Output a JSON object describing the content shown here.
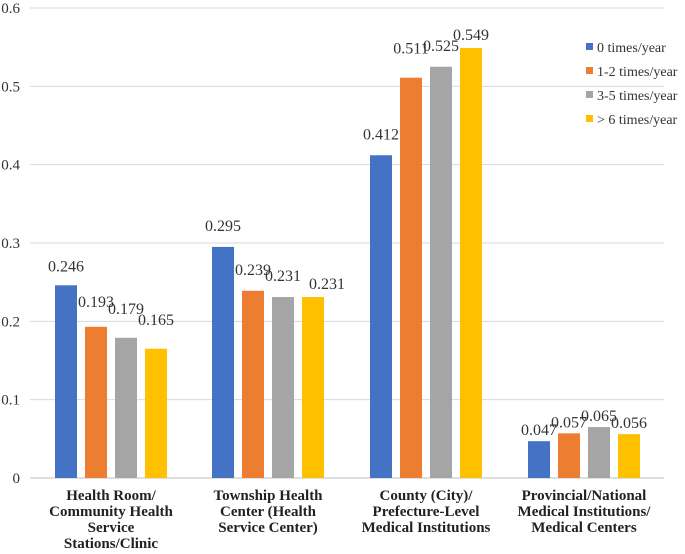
{
  "chart_data": {
    "type": "bar",
    "title": "",
    "xlabel": "",
    "ylabel": "",
    "ylim": [
      0,
      0.6
    ],
    "yticks": [
      0,
      0.1,
      0.2,
      0.3,
      0.4,
      0.5,
      0.6
    ],
    "ytick_labels": [
      "0",
      "0.1",
      "0.2",
      "0.3",
      "0.4",
      "0.5",
      "0.6"
    ],
    "grid": true,
    "legend_position": "right",
    "categories": [
      [
        "Health  Room/",
        "Community Health",
        "Service",
        "Stations/Clinic"
      ],
      [
        "Township Health",
        "Center (Health",
        "Service Center)"
      ],
      [
        "County (City)/",
        "Prefecture-Level",
        "Medical Institutions"
      ],
      [
        "Provincial/National",
        "Medical Institutions/",
        "Medical Centers"
      ]
    ],
    "series": [
      {
        "name": "0 times/year",
        "color": "#4472C4",
        "values": [
          0.246,
          0.295,
          0.412,
          0.047
        ],
        "labels": [
          "0.246",
          "0.295",
          "0.412",
          "0.047"
        ]
      },
      {
        "name": "1-2 times/year",
        "color": "#ED7D31",
        "values": [
          0.193,
          0.239,
          0.511,
          0.057
        ],
        "labels": [
          "0.193",
          "0.239",
          "0.511",
          "0.057"
        ]
      },
      {
        "name": "3-5 times/year",
        "color": "#A5A5A5",
        "values": [
          0.179,
          0.231,
          0.525,
          0.065
        ],
        "labels": [
          "0.179",
          "0.231",
          "0.525",
          "0.065"
        ]
      },
      {
        "name": "> 6 times/year",
        "color": "#FFC000",
        "values": [
          0.165,
          0.231,
          0.549,
          0.056
        ],
        "labels": [
          "0.165",
          "0.231",
          "0.549",
          "0.056"
        ]
      }
    ]
  }
}
